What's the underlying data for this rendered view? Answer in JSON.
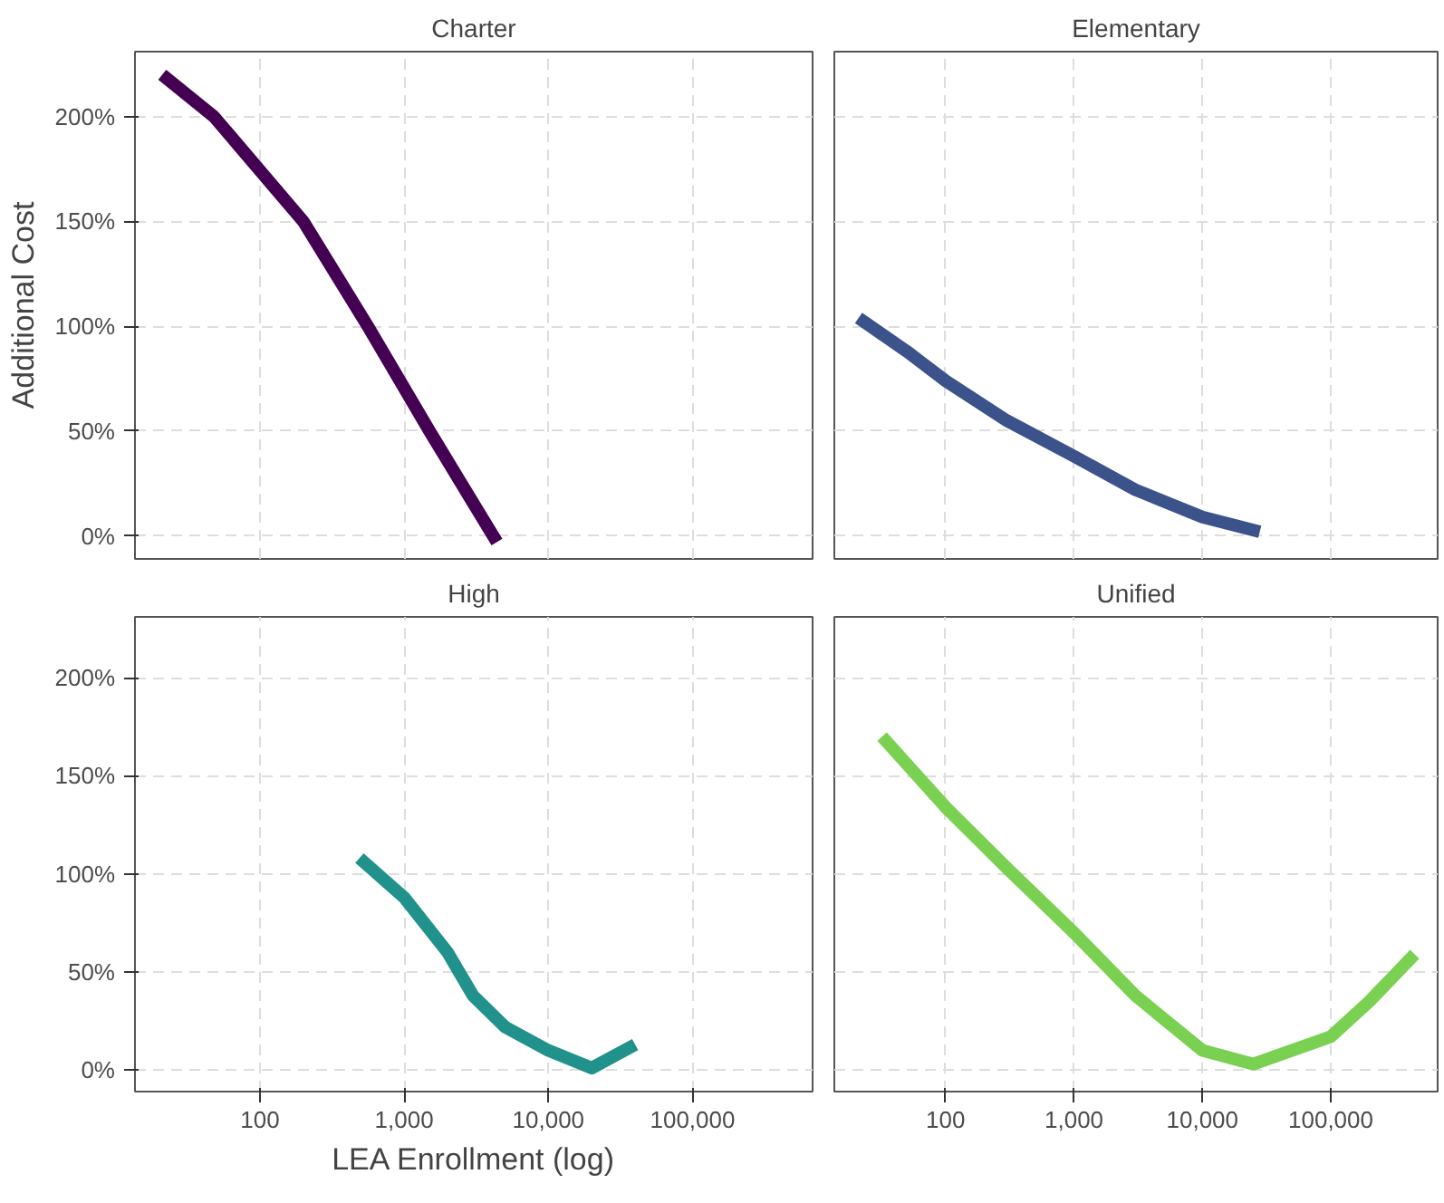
{
  "chart_data": [
    {
      "type": "line",
      "title": "Charter",
      "ylabel": "Additional Cost",
      "log": "x",
      "grid": true,
      "tick_labels": "y",
      "xlim": [
        13.6,
        680000
      ],
      "ylim": [
        -11,
        231
      ],
      "xticks": [
        100,
        1000,
        10000,
        100000
      ],
      "yticks": [
        {
          "value": 0,
          "label": "0%"
        },
        {
          "value": 50,
          "label": "50%"
        },
        {
          "value": 100,
          "label": "100%"
        },
        {
          "value": 150,
          "label": "150%"
        },
        {
          "value": 200,
          "label": "200%"
        }
      ],
      "series": [
        {
          "color": "#440154",
          "x": [
            21,
            48,
            200,
            560,
            1500,
            4400
          ],
          "values": [
            220,
            200,
            150,
            100,
            50,
            -3
          ]
        }
      ]
    },
    {
      "type": "line",
      "title": "Elementary",
      "log": "x",
      "grid": true,
      "tick_labels": false,
      "xlim": [
        13.6,
        680000
      ],
      "ylim": [
        -11,
        231
      ],
      "xticks": [
        100,
        1000,
        10000,
        100000
      ],
      "yticks": [
        0,
        50,
        100,
        150,
        200
      ],
      "series": [
        {
          "color": "#3b528b",
          "x": [
            21,
            50,
            100,
            300,
            1000,
            3000,
            10000,
            28000
          ],
          "values": [
            104,
            88,
            74,
            55,
            38,
            22,
            9,
            2
          ]
        }
      ]
    },
    {
      "type": "line",
      "title": "High",
      "xlabel": "LEA Enrollment (log)",
      "log": "x",
      "grid": true,
      "xlim": [
        13.6,
        680000
      ],
      "ylim": [
        -11,
        231
      ],
      "xticks": [
        {
          "value": 100,
          "label": "100"
        },
        {
          "value": 1000,
          "label": "1,000"
        },
        {
          "value": 10000,
          "label": "10,000"
        },
        {
          "value": 100000,
          "label": "100,000"
        }
      ],
      "yticks": [
        {
          "value": 0,
          "label": "0%"
        },
        {
          "value": 50,
          "label": "50%"
        },
        {
          "value": 100,
          "label": "100%"
        },
        {
          "value": 150,
          "label": "150%"
        },
        {
          "value": 200,
          "label": "200%"
        }
      ],
      "series": [
        {
          "color": "#21918c",
          "x": [
            490,
            1000,
            2000,
            3000,
            5000,
            10000,
            20000,
            40000
          ],
          "values": [
            108,
            88,
            60,
            38,
            22,
            10,
            1,
            13
          ]
        }
      ]
    },
    {
      "type": "line",
      "title": "Unified",
      "log": "x",
      "grid": true,
      "tick_labels": "x",
      "xlim": [
        13.6,
        680000
      ],
      "ylim": [
        -11,
        231
      ],
      "xticks": [
        {
          "value": 100,
          "label": "100"
        },
        {
          "value": 1000,
          "label": "1,000"
        },
        {
          "value": 10000,
          "label": "10,000"
        },
        {
          "value": 100000,
          "label": "100,000"
        }
      ],
      "yticks": [
        0,
        50,
        100,
        150,
        200
      ],
      "series": [
        {
          "color": "#7ad151",
          "x": [
            32,
            100,
            300,
            1000,
            3000,
            10000,
            25000,
            100000,
            200000,
            450000
          ],
          "values": [
            170,
            134,
            103,
            70,
            38,
            10,
            3,
            17,
            35,
            59
          ]
        }
      ]
    }
  ]
}
